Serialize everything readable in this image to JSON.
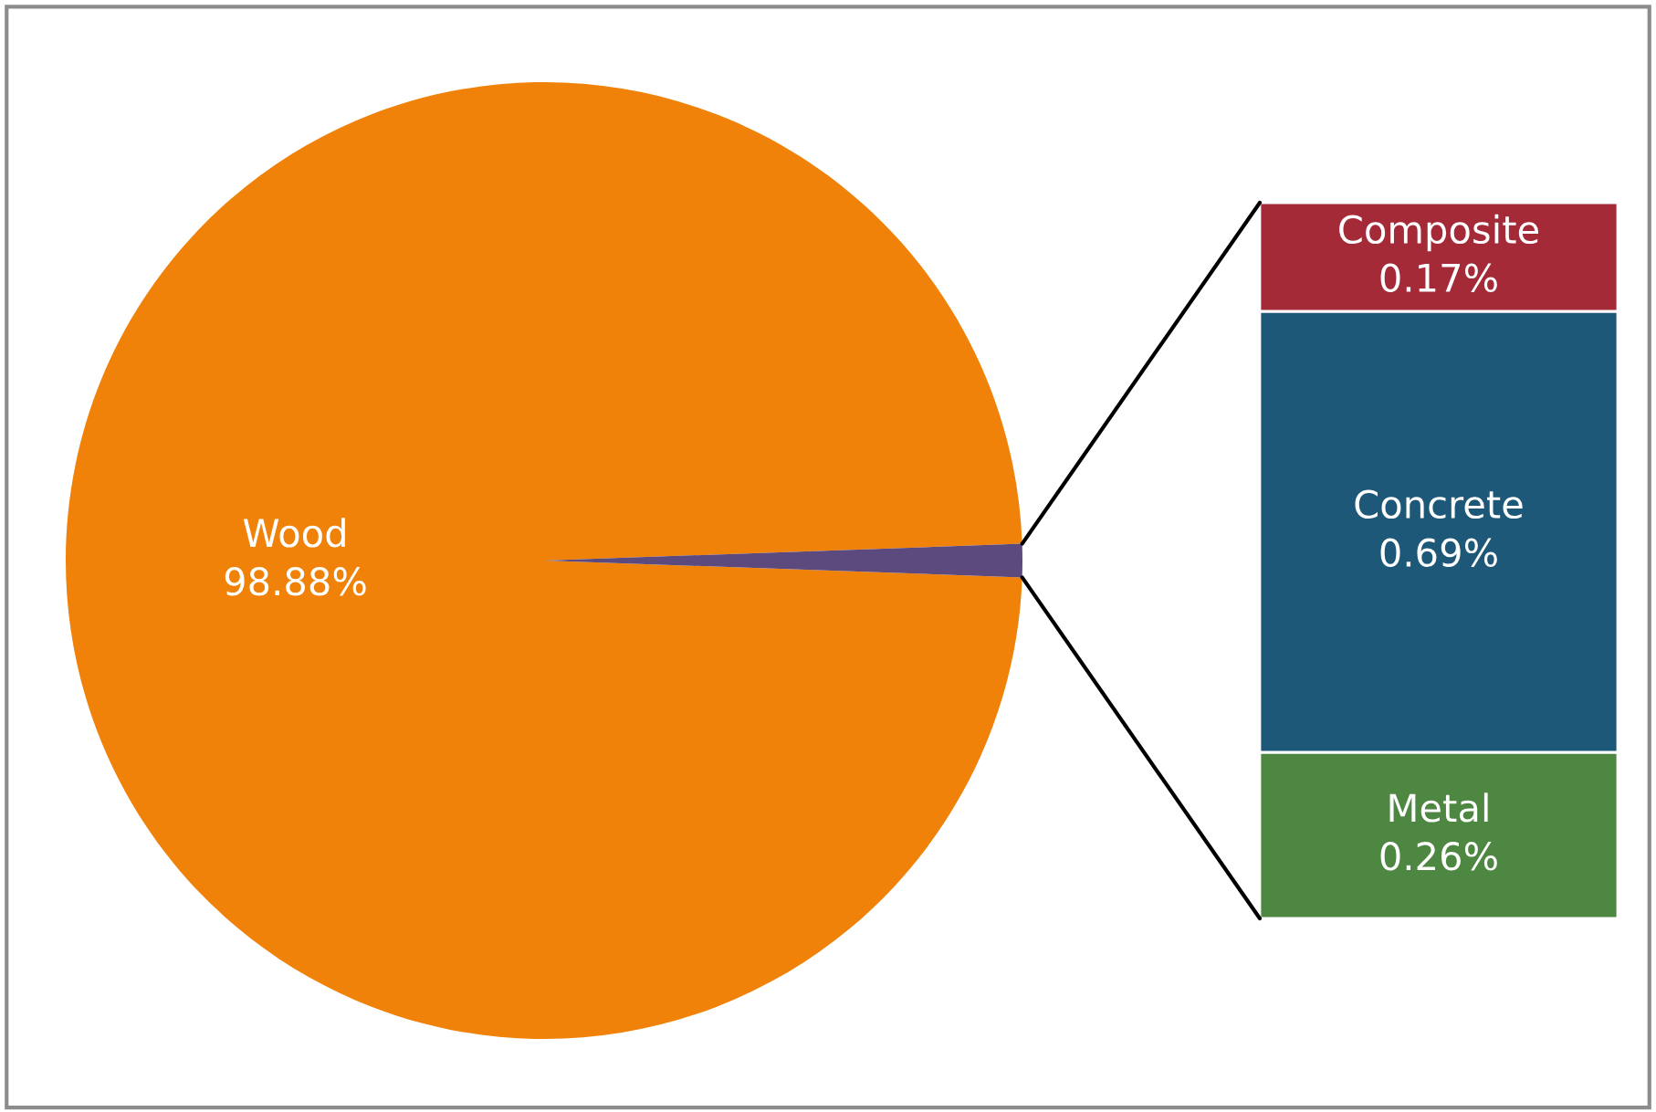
{
  "chart_data": [
    {
      "type": "pie",
      "categories": [
        "Wood",
        null
      ],
      "values": [
        98.88,
        1.12
      ],
      "colors": [
        "#f0820a",
        "#5c4a7e"
      ],
      "value_labels": [
        "98.88%",
        null
      ]
    },
    {
      "type": "bar",
      "stacked": true,
      "categories": [
        null
      ],
      "series": [
        {
          "name": "Metal",
          "color": "#4e8742",
          "values": [
            0.26
          ],
          "value_labels": [
            "0.26%"
          ]
        },
        {
          "name": "Concrete",
          "color": "#1e5878",
          "values": [
            0.69
          ],
          "value_labels": [
            "0.69%"
          ]
        },
        {
          "name": "Composite",
          "color": "#a52a38",
          "values": [
            0.17
          ],
          "value_labels": [
            "0.17%"
          ]
        }
      ]
    }
  ]
}
